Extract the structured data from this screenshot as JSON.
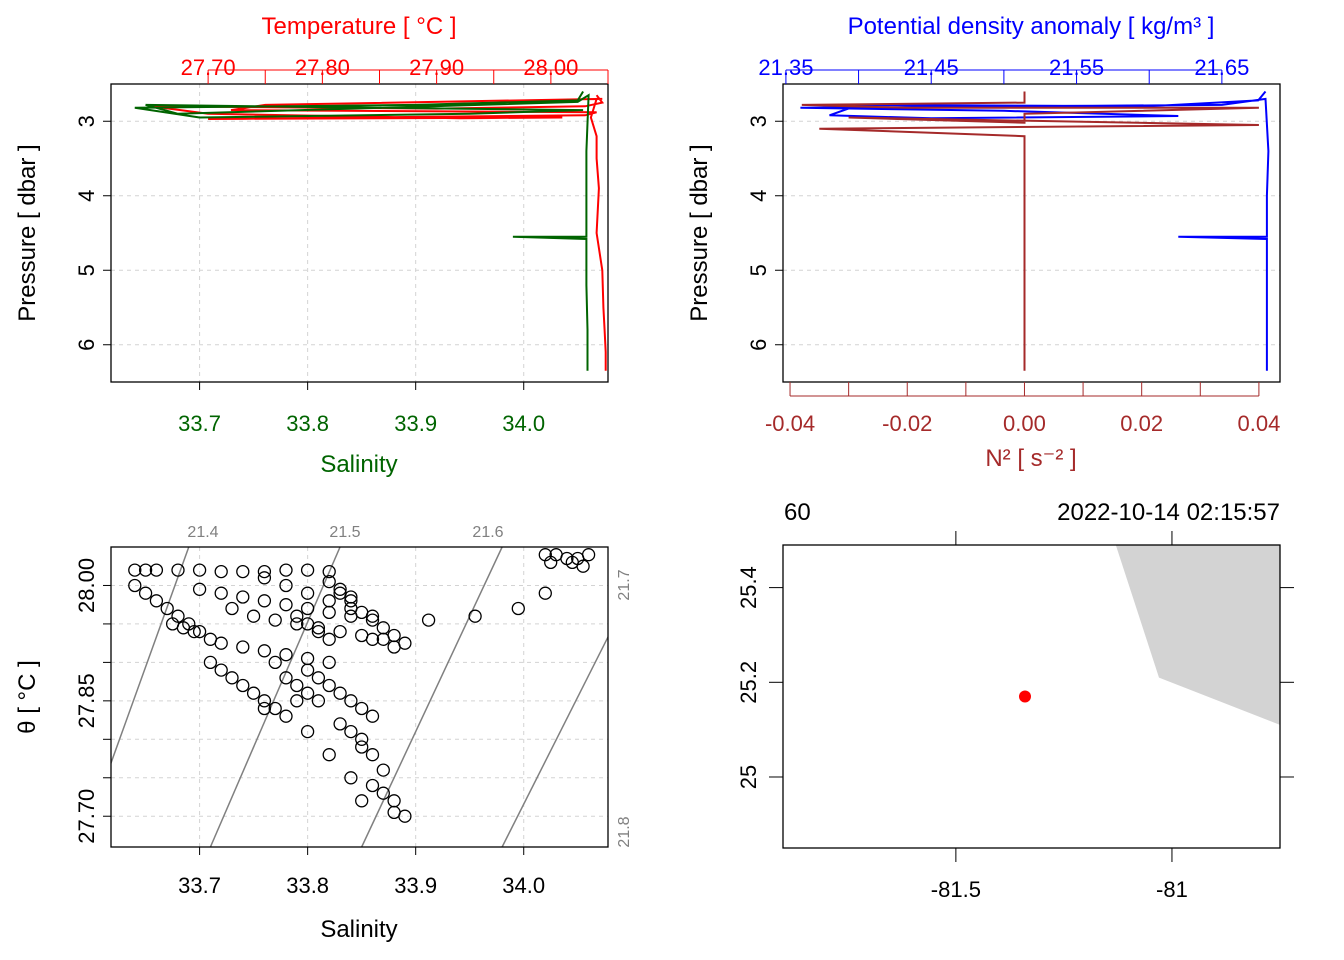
{
  "colors": {
    "temperature": "#ff0000",
    "salinity": "#006400",
    "density": "#0000ff",
    "n2": "#a52a2a",
    "grid": "#d3d3d3",
    "isopycnal": "#808080",
    "land": "#d3d3d3",
    "station": "#ff0000"
  },
  "chart_data": [
    {
      "panel": "profile-temperature-salinity",
      "type": "line",
      "top_axis_label": "Temperature [ °C ]",
      "top_ticks": [
        "27.70",
        "27.80",
        "27.90",
        "28.00"
      ],
      "top_range": [
        27.615,
        28.05
      ],
      "bottom_axis_label": "Salinity",
      "bottom_ticks": [
        "33.7",
        "33.8",
        "33.9",
        "34.0"
      ],
      "bottom_range": [
        33.618,
        34.078
      ],
      "ylabel": "Pressure [ dbar ]",
      "y_ticks": [
        "3",
        "4",
        "5",
        "6"
      ],
      "y_range_reversed": [
        2.5,
        6.5
      ],
      "grid": true,
      "series": [
        {
          "name": "Temperature",
          "color": "#ff0000",
          "x": [
            28.04,
            28.045,
            28.03,
            27.9,
            27.65,
            27.7,
            27.92,
            28.01,
            27.7,
            28.03,
            28.04,
            27.72,
            27.75,
            28.045,
            28.04,
            28.035,
            28.04,
            28.04,
            28.042,
            28.04,
            28.045,
            28.046,
            28.047,
            28.048,
            28.048
          ],
          "y": [
            2.65,
            2.75,
            2.8,
            2.83,
            2.8,
            2.9,
            2.96,
            2.95,
            2.97,
            2.92,
            2.88,
            2.85,
            2.78,
            2.7,
            2.7,
            2.95,
            3.2,
            3.5,
            3.9,
            4.5,
            5.0,
            5.5,
            5.8,
            6.1,
            6.35
          ]
        },
        {
          "name": "Salinity",
          "color": "#006400",
          "x": [
            34.055,
            34.05,
            33.9,
            33.64,
            33.7,
            33.95,
            34.055,
            33.65,
            33.68,
            34.05,
            34.06,
            34.058,
            34.058,
            34.058,
            33.99,
            34.058,
            34.058,
            34.059,
            34.059
          ],
          "y": [
            2.6,
            2.72,
            2.78,
            2.82,
            2.95,
            2.9,
            2.85,
            2.78,
            2.9,
            2.74,
            2.65,
            3.4,
            4.0,
            4.55,
            4.55,
            4.58,
            5.2,
            5.8,
            6.35
          ]
        }
      ]
    },
    {
      "panel": "profile-density-n2",
      "type": "line",
      "top_axis_label": "Potential density anomaly [ kg/m³ ]",
      "top_ticks": [
        "21.35",
        "21.45",
        "21.55",
        "21.65"
      ],
      "top_range": [
        21.348,
        21.69
      ],
      "bottom_axis_label": "N² [ s⁻² ]",
      "bottom_ticks": [
        "-0.04",
        "-0.02",
        "0.00",
        "0.02",
        "0.04"
      ],
      "bottom_range": [
        -0.0412,
        0.0436
      ],
      "ylabel": "Pressure [ dbar ]",
      "y_ticks": [
        "3",
        "4",
        "5",
        "6"
      ],
      "y_range_reversed": [
        2.5,
        6.5
      ],
      "grid": true,
      "series": [
        {
          "name": "Potential density anomaly",
          "color": "#0000ff",
          "x": [
            21.68,
            21.675,
            21.6,
            21.4,
            21.38,
            21.45,
            21.62,
            21.5,
            21.36,
            21.65,
            21.68,
            21.682,
            21.681,
            21.681,
            21.62,
            21.681,
            21.681,
            21.681
          ],
          "y": [
            2.6,
            2.72,
            2.8,
            2.78,
            2.92,
            2.96,
            2.93,
            2.86,
            2.82,
            2.78,
            2.7,
            3.4,
            4.0,
            4.55,
            4.55,
            4.58,
            5.5,
            6.35
          ]
        },
        {
          "name": "N²",
          "color": "#a52a2a",
          "x": [
            0.0,
            0.0,
            -0.038,
            -0.02,
            0.04,
            0.0,
            0.0,
            -0.03,
            0.04,
            -0.035,
            0.0,
            0.0,
            0.0,
            0.0,
            0.0,
            0.0,
            0.0
          ],
          "y": [
            2.6,
            2.75,
            2.78,
            2.82,
            2.82,
            2.9,
            3.02,
            2.95,
            3.05,
            3.1,
            3.2,
            3.24,
            4.45,
            4.5,
            4.56,
            5.2,
            6.35
          ]
        }
      ]
    },
    {
      "panel": "ts-diagram",
      "type": "scatter",
      "xlabel": "Salinity",
      "ylabel": "θ [ °C ]",
      "x_ticks": [
        "33.7",
        "33.8",
        "33.9",
        "34.0"
      ],
      "x_range": [
        33.618,
        34.078
      ],
      "y_ticks": [
        "27.70",
        "27.85",
        "28.00"
      ],
      "y_range": [
        27.66,
        28.05
      ],
      "isopycnal_labels": [
        "21.4",
        "21.5",
        "21.6",
        "21.7",
        "21.8"
      ],
      "grid": true,
      "points": [
        [
          34.02,
          28.04
        ],
        [
          34.03,
          28.04
        ],
        [
          34.04,
          28.035
        ],
        [
          34.05,
          28.035
        ],
        [
          34.06,
          28.04
        ],
        [
          34.045,
          28.03
        ],
        [
          34.025,
          28.03
        ],
        [
          34.055,
          28.025
        ],
        [
          34.02,
          27.99
        ],
        [
          33.995,
          27.97
        ],
        [
          33.955,
          27.96
        ],
        [
          33.912,
          27.955
        ],
        [
          33.64,
          28.02
        ],
        [
          33.65,
          28.02
        ],
        [
          33.66,
          28.02
        ],
        [
          33.68,
          28.02
        ],
        [
          33.7,
          28.02
        ],
        [
          33.72,
          28.018
        ],
        [
          33.74,
          28.018
        ],
        [
          33.76,
          28.018
        ],
        [
          33.78,
          28.02
        ],
        [
          33.8,
          28.02
        ],
        [
          33.82,
          28.018
        ],
        [
          33.64,
          28.0
        ],
        [
          33.65,
          27.99
        ],
        [
          33.66,
          27.98
        ],
        [
          33.67,
          27.97
        ],
        [
          33.68,
          27.96
        ],
        [
          33.69,
          27.95
        ],
        [
          33.7,
          27.94
        ],
        [
          33.71,
          27.93
        ],
        [
          33.675,
          27.95
        ],
        [
          33.685,
          27.945
        ],
        [
          33.695,
          27.94
        ],
        [
          33.7,
          27.995
        ],
        [
          33.72,
          27.99
        ],
        [
          33.74,
          27.985
        ],
        [
          33.76,
          27.98
        ],
        [
          33.78,
          27.975
        ],
        [
          33.8,
          27.97
        ],
        [
          33.82,
          27.965
        ],
        [
          33.84,
          27.96
        ],
        [
          33.73,
          27.97
        ],
        [
          33.75,
          27.96
        ],
        [
          33.77,
          27.955
        ],
        [
          33.79,
          27.95
        ],
        [
          33.81,
          27.945
        ],
        [
          33.83,
          27.94
        ],
        [
          33.85,
          27.935
        ],
        [
          33.87,
          27.93
        ],
        [
          33.76,
          28.01
        ],
        [
          33.78,
          28.0
        ],
        [
          33.8,
          27.99
        ],
        [
          33.82,
          27.98
        ],
        [
          33.84,
          27.97
        ],
        [
          33.86,
          27.96
        ],
        [
          33.79,
          27.96
        ],
        [
          33.8,
          27.95
        ],
        [
          33.81,
          27.94
        ],
        [
          33.82,
          27.93
        ],
        [
          33.88,
          27.92
        ],
        [
          33.86,
          27.93
        ],
        [
          33.72,
          27.925
        ],
        [
          33.74,
          27.92
        ],
        [
          33.76,
          27.915
        ],
        [
          33.78,
          27.91
        ],
        [
          33.8,
          27.905
        ],
        [
          33.82,
          27.9
        ],
        [
          33.71,
          27.9
        ],
        [
          33.72,
          27.89
        ],
        [
          33.73,
          27.88
        ],
        [
          33.74,
          27.87
        ],
        [
          33.75,
          27.86
        ],
        [
          33.76,
          27.85
        ],
        [
          33.77,
          27.84
        ],
        [
          33.8,
          27.89
        ],
        [
          33.81,
          27.88
        ],
        [
          33.82,
          27.87
        ],
        [
          33.83,
          27.86
        ],
        [
          33.84,
          27.85
        ],
        [
          33.85,
          27.84
        ],
        [
          33.86,
          27.83
        ],
        [
          33.83,
          27.82
        ],
        [
          33.84,
          27.81
        ],
        [
          33.85,
          27.8
        ],
        [
          33.85,
          27.79
        ],
        [
          33.86,
          27.78
        ],
        [
          33.87,
          27.76
        ],
        [
          33.86,
          27.74
        ],
        [
          33.87,
          27.73
        ],
        [
          33.88,
          27.72
        ],
        [
          33.89,
          27.7
        ],
        [
          33.88,
          27.705
        ],
        [
          33.8,
          27.81
        ],
        [
          33.82,
          27.78
        ],
        [
          33.84,
          27.75
        ],
        [
          33.85,
          27.72
        ],
        [
          33.77,
          27.9
        ],
        [
          33.78,
          27.88
        ],
        [
          33.79,
          27.87
        ],
        [
          33.8,
          27.86
        ],
        [
          33.81,
          27.85
        ],
        [
          33.76,
          27.84
        ],
        [
          33.78,
          27.83
        ],
        [
          33.79,
          27.85
        ],
        [
          33.83,
          27.99
        ],
        [
          33.84,
          27.98
        ],
        [
          33.85,
          27.965
        ],
        [
          33.86,
          27.955
        ],
        [
          33.87,
          27.945
        ],
        [
          33.88,
          27.935
        ],
        [
          33.89,
          27.925
        ],
        [
          33.82,
          28.005
        ],
        [
          33.83,
          27.995
        ],
        [
          33.84,
          27.985
        ]
      ]
    }
  ],
  "map": {
    "title_left": "60",
    "title_right": "2022-10-14 02:15:57",
    "x_ticks": [
      "-81.5",
      "-81"
    ],
    "x_range": [
      -81.9,
      -80.75
    ],
    "y_ticks": [
      "25",
      "25.2",
      "25.4"
    ],
    "y_range": [
      24.85,
      25.49
    ],
    "station": {
      "lon": -81.34,
      "lat": 25.17
    },
    "land_polygon": [
      [
        -81.13,
        25.49
      ],
      [
        -80.75,
        25.49
      ],
      [
        -80.75,
        25.11
      ],
      [
        -81.03,
        25.21
      ]
    ]
  }
}
